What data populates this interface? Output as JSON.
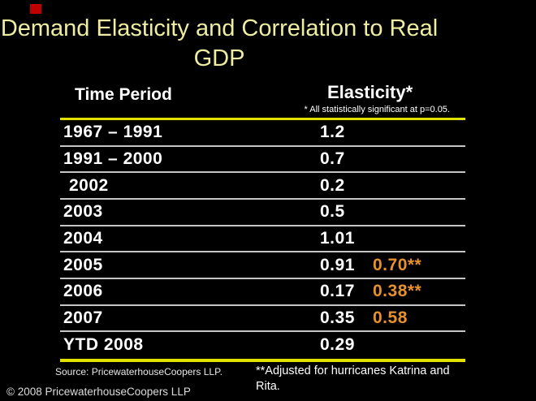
{
  "slide": {
    "title": "Demand Elasticity and Correlation to Real GDP",
    "source_note": "Source: PricewaterhouseCoopers LLP.",
    "adjusted_note": "**Adjusted for hurricanes Katrina and Rita.",
    "copyright": "© 2008 PricewaterhouseCoopers LLP"
  },
  "table": {
    "col1_header": "Time Period",
    "col2_header": "Elasticity*",
    "header_footnote": "* All statistically significant at p=0.05.",
    "rows": [
      {
        "period": "1967 – 1991",
        "elasticity": "1.2",
        "adjusted": "",
        "indent": false
      },
      {
        "period": "1991 – 2000",
        "elasticity": "0.7",
        "adjusted": "",
        "indent": false
      },
      {
        "period": "2002",
        "elasticity": "0.2",
        "adjusted": "",
        "indent": true
      },
      {
        "period": "2003",
        "elasticity": "0.5",
        "adjusted": "",
        "indent": false
      },
      {
        "period": "2004",
        "elasticity": "1.01",
        "adjusted": "",
        "indent": false
      },
      {
        "period": "2005",
        "elasticity": "0.91",
        "adjusted": "0.70**",
        "indent": false
      },
      {
        "period": "2006",
        "elasticity": "0.17",
        "adjusted": "0.38**",
        "indent": false
      },
      {
        "period": "2007",
        "elasticity": "0.35",
        "adjusted": "0.58",
        "indent": false
      },
      {
        "period": "YTD 2008",
        "elasticity": "0.29",
        "adjusted": "",
        "indent": false
      }
    ]
  },
  "colors": {
    "background": "#000000",
    "title_yellow": "#EEEDA2",
    "rule_yellow": "#E2E200",
    "separator_gray": "#C6C6C6",
    "text_white": "#FFFFFF",
    "adjusted_orange": "#E8912C",
    "marker_red": "#C00000"
  }
}
